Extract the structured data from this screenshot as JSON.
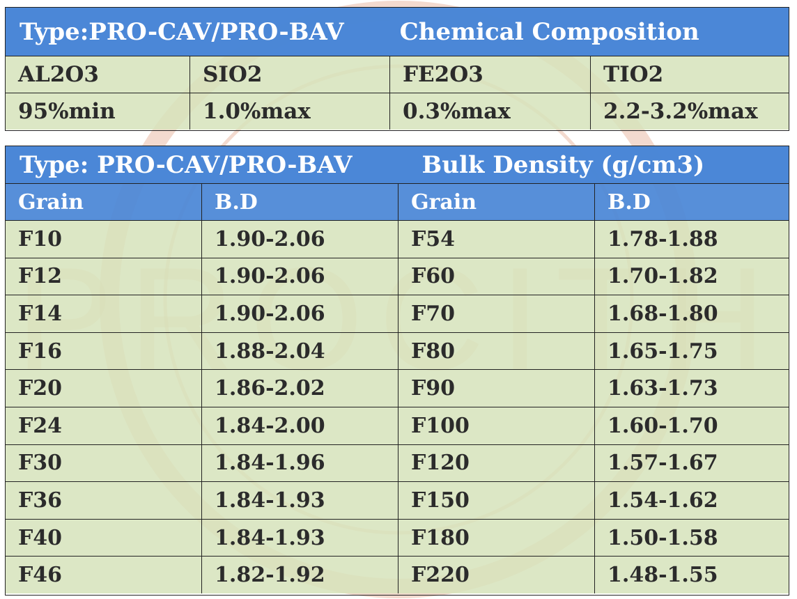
{
  "watermark": {
    "text": "PROCITH",
    "color": "#e8b7a0"
  },
  "chemical": {
    "title_type": "Type:PRO-CAV/PRO-BAV",
    "title_name": "Chemical Composition",
    "headers": [
      "AL2O3",
      "SIO2",
      "FE2O3",
      "TIO2"
    ],
    "values": [
      "95%min",
      "1.0%max",
      "0.3%max",
      "2.2-3.2%max"
    ]
  },
  "bulk": {
    "title_type": "Type: PRO-CAV/PRO-BAV",
    "title_name": "Bulk Density (g/cm3)",
    "headers": [
      "Grain",
      "B.D",
      "Grain",
      "B.D"
    ],
    "rows": [
      [
        "F10",
        "1.90-2.06",
        "F54",
        "1.78-1.88"
      ],
      [
        "F12",
        "1.90-2.06",
        "F60",
        "1.70-1.82"
      ],
      [
        "F14",
        "1.90-2.06",
        "F70",
        "1.68-1.80"
      ],
      [
        "F16",
        "1.88-2.04",
        "F80",
        "1.65-1.75"
      ],
      [
        "F20",
        "1.86-2.02",
        "F90",
        "1.63-1.73"
      ],
      [
        "F24",
        "1.84-2.00",
        "F100",
        "1.60-1.70"
      ],
      [
        "F30",
        "1.84-1.96",
        "F120",
        "1.57-1.67"
      ],
      [
        "F36",
        "1.84-1.93",
        "F150",
        "1.54-1.62"
      ],
      [
        "F40",
        "1.84-1.93",
        "F180",
        "1.50-1.58"
      ],
      [
        "F46",
        "1.82-1.92",
        "F220",
        "1.48-1.55"
      ]
    ]
  },
  "colors": {
    "header_blue": "#4a86d6",
    "cell_green": "#d6e3bc",
    "border": "#222222",
    "text_dark": "#2b2b2b"
  }
}
